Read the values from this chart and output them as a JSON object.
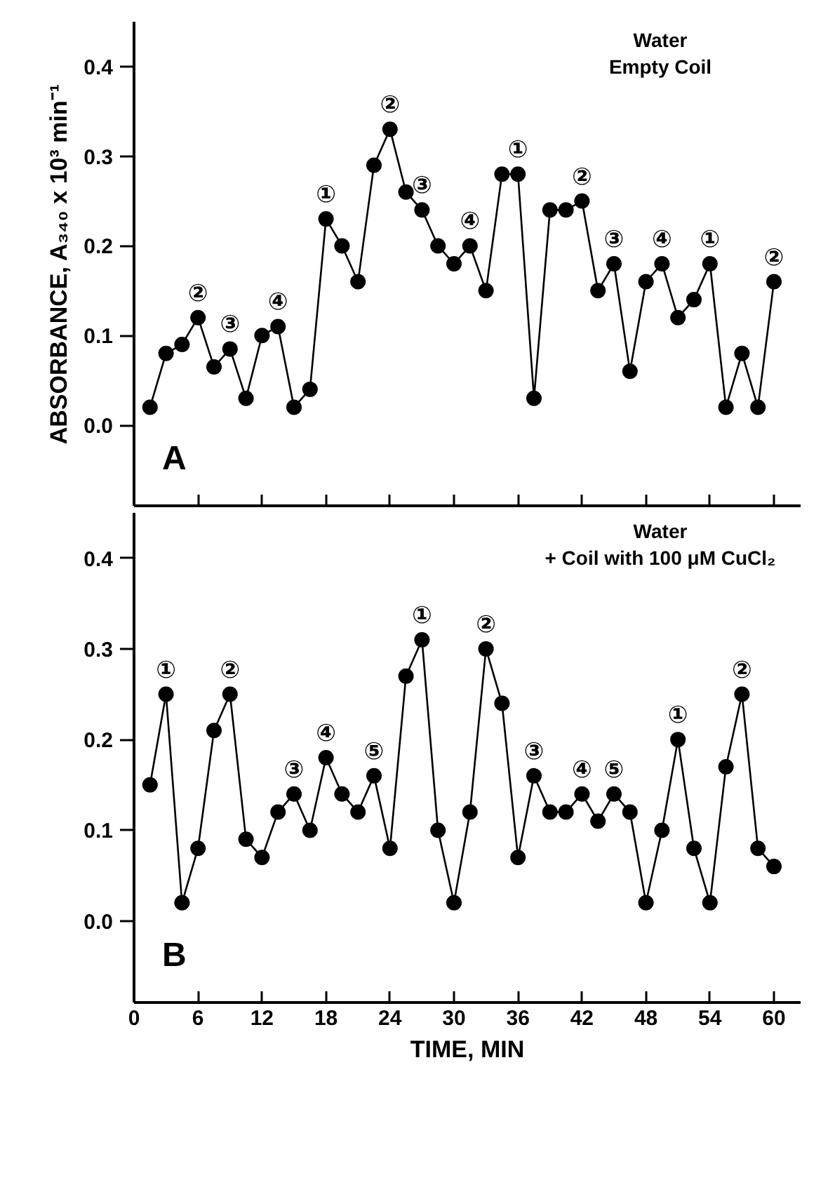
{
  "chart_data": [
    {
      "type": "line",
      "title": "Water\nEmpty Coil",
      "ylabel": "ABSORBANCE, A₃₄₀ x 10³ min⁻¹",
      "x": [
        1.5,
        3,
        4.5,
        6,
        7.5,
        9,
        10.5,
        12,
        13.5,
        15,
        16.5,
        18,
        19.5,
        21,
        22.5,
        24,
        25.5,
        27,
        28.5,
        30,
        31.5,
        33,
        34.5,
        36,
        37.5,
        39,
        40.5,
        42,
        43.5,
        45,
        46.5,
        48,
        49.5,
        51,
        52.5,
        54,
        55.5,
        57,
        58.5,
        60
      ],
      "series": [
        {
          "color": "#000000",
          "values": [
            0.02,
            0.08,
            0.09,
            0.12,
            0.065,
            0.085,
            0.03,
            0.1,
            0.11,
            0.02,
            0.04,
            0.23,
            0.2,
            0.16,
            0.29,
            0.33,
            0.26,
            0.24,
            0.2,
            0.18,
            0.2,
            0.15,
            0.28,
            0.28,
            0.03,
            0.24,
            0.24,
            0.25,
            0.15,
            0.18,
            0.06,
            0.16,
            0.18,
            0.12,
            0.14,
            0.18,
            0.02,
            0.08,
            0.02,
            0.16
          ]
        }
      ],
      "marker": "circle",
      "line_style": "solid",
      "grid": false,
      "xlim": [
        0,
        62.5
      ],
      "xticks": [
        {
          "value": 6,
          "label": null
        },
        {
          "value": 12,
          "label": null
        },
        {
          "value": 18,
          "label": null
        },
        {
          "value": 24,
          "label": null
        },
        {
          "value": 30,
          "label": null
        },
        {
          "value": 36,
          "label": null
        },
        {
          "value": 42,
          "label": null
        },
        {
          "value": 48,
          "label": null
        },
        {
          "value": 54,
          "label": null
        },
        {
          "value": 60,
          "label": null
        }
      ],
      "ylim": [
        -0.09,
        0.45
      ],
      "yticks": [
        {
          "value": 0,
          "label": "0.0"
        },
        0.1,
        0.2,
        0.3,
        0.4
      ],
      "tick_labels": "y",
      "annotations": [
        "A",
        {
          "text": "②",
          "x": 6,
          "y": 0.12
        },
        {
          "text": "③",
          "x": 9,
          "y": 0.085
        },
        {
          "text": "④",
          "x": 13.5,
          "y": 0.11
        },
        {
          "text": "①",
          "x": 18,
          "y": 0.23
        },
        {
          "text": "②",
          "x": 24,
          "y": 0.33
        },
        {
          "text": "③",
          "x": 27,
          "y": 0.24
        },
        {
          "text": "④",
          "x": 31.5,
          "y": 0.2
        },
        {
          "text": "①",
          "x": 36,
          "y": 0.28
        },
        {
          "text": "②",
          "x": 42,
          "y": 0.25
        },
        {
          "text": "③",
          "x": 45,
          "y": 0.18
        },
        {
          "text": "④",
          "x": 49.5,
          "y": 0.18
        },
        {
          "text": "①",
          "x": 54,
          "y": 0.18
        },
        {
          "text": "②",
          "x": 60,
          "y": 0.16
        }
      ]
    },
    {
      "type": "line",
      "title": "Water\n+ Coil with 100 μM CuCl₂",
      "xlabel": "TIME, MIN",
      "x": [
        1.5,
        3,
        4.5,
        6,
        7.5,
        9,
        10.5,
        12,
        13.5,
        15,
        16.5,
        18,
        19.5,
        21,
        22.5,
        24,
        25.5,
        27,
        28.5,
        30,
        31.5,
        33,
        34.5,
        36,
        37.5,
        39,
        40.5,
        42,
        43.5,
        45,
        46.5,
        48,
        49.5,
        51,
        52.5,
        54,
        55.5,
        57,
        58.5,
        60
      ],
      "series": [
        {
          "color": "#000000",
          "values": [
            0.15,
            0.25,
            0.02,
            0.08,
            0.21,
            0.25,
            0.09,
            0.07,
            0.12,
            0.14,
            0.1,
            0.18,
            0.14,
            0.12,
            0.16,
            0.08,
            0.27,
            0.31,
            0.1,
            0.02,
            0.12,
            0.3,
            0.24,
            0.07,
            0.16,
            0.12,
            0.12,
            0.14,
            0.11,
            0.14,
            0.12,
            0.02,
            0.1,
            0.2,
            0.08,
            0.02,
            0.17,
            0.25,
            0.08,
            0.06
          ]
        }
      ],
      "marker": "circle",
      "line_style": "solid",
      "grid": false,
      "xlim": [
        0,
        62.5
      ],
      "xticks": [
        0,
        6,
        12,
        18,
        24,
        30,
        36,
        42,
        48,
        54,
        60
      ],
      "ylim": [
        -0.09,
        0.45
      ],
      "yticks": [
        {
          "value": 0,
          "label": "0.0"
        },
        0.1,
        0.2,
        0.3,
        0.4
      ],
      "annotations": [
        "B",
        {
          "text": "①",
          "x": 3,
          "y": 0.25
        },
        {
          "text": "②",
          "x": 9,
          "y": 0.25
        },
        {
          "text": "③",
          "x": 15,
          "y": 0.14
        },
        {
          "text": "④",
          "x": 18,
          "y": 0.18
        },
        {
          "text": "⑤",
          "x": 22.5,
          "y": 0.16
        },
        {
          "text": "①",
          "x": 27,
          "y": 0.31
        },
        {
          "text": "②",
          "x": 33,
          "y": 0.3
        },
        {
          "text": "③",
          "x": 37.5,
          "y": 0.16
        },
        {
          "text": "④",
          "x": 42,
          "y": 0.14
        },
        {
          "text": "⑤",
          "x": 45,
          "y": 0.14
        },
        {
          "text": "①",
          "x": 51,
          "y": 0.2
        },
        {
          "text": "②",
          "x": 57,
          "y": 0.25
        }
      ]
    }
  ]
}
